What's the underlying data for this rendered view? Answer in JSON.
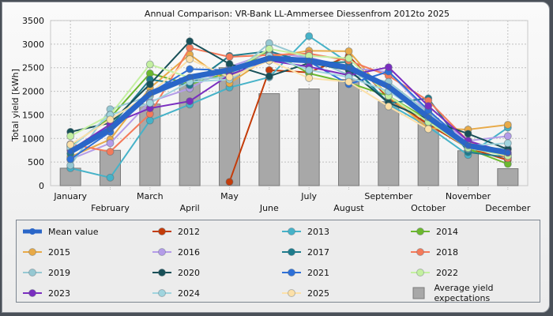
{
  "chart_data": {
    "type": "line",
    "title": "Annual Comparison: VR-Bank LL-Ammersee Diessenfrom 2012to 2025",
    "xlabel": "",
    "ylabel": "Total yield [kWh]",
    "ylim": [
      0,
      3500
    ],
    "yticks": [
      0,
      500,
      1000,
      1500,
      2000,
      2500,
      3000,
      3500
    ],
    "grid": true,
    "legend_position": "bottom",
    "categories": [
      "January",
      "February",
      "March",
      "April",
      "May",
      "June",
      "July",
      "August",
      "September",
      "October",
      "November",
      "December"
    ],
    "bars": {
      "name": "Average yield expectations",
      "color": "#a8a8a8",
      "values": [
        370,
        750,
        1730,
        2280,
        2500,
        1950,
        2050,
        2250,
        1780,
        1430,
        740,
        360
      ]
    },
    "series": [
      {
        "name": "Mean value",
        "color": "#2a66c8",
        "thick": true,
        "values": [
          720,
          1200,
          1950,
          2300,
          2450,
          2700,
          2650,
          2500,
          2100,
          1450,
          850,
          700
        ]
      },
      {
        "name": "2012",
        "color": "#c43c0a",
        "values": [
          null,
          null,
          null,
          null,
          80,
          2450,
          2400,
          2750,
          1850,
          1300,
          800,
          540
        ]
      },
      {
        "name": "2013",
        "color": "#46b2c8",
        "values": [
          370,
          170,
          1380,
          1720,
          2080,
          2300,
          3170,
          2600,
          1730,
          1250,
          650,
          1230
        ]
      },
      {
        "name": "2014",
        "color": "#6cb82e",
        "values": [
          840,
          1440,
          2380,
          2150,
          2400,
          2850,
          2380,
          2180,
          1900,
          1400,
          780,
          460
        ]
      },
      {
        "name": "2015",
        "color": "#e8aa48",
        "values": [
          610,
          980,
          2070,
          2780,
          2170,
          2730,
          2860,
          2850,
          1890,
          1220,
          1190,
          1290
        ]
      },
      {
        "name": "2016",
        "color": "#b49ce8",
        "values": [
          560,
          900,
          1780,
          2060,
          2520,
          2810,
          2720,
          2500,
          2410,
          1550,
          950,
          1050
        ]
      },
      {
        "name": "2017",
        "color": "#1e7c8c",
        "values": [
          680,
          1250,
          2250,
          2130,
          2750,
          2850,
          2600,
          2620,
          1750,
          1850,
          710,
          600
        ]
      },
      {
        "name": "2018",
        "color": "#f47a5a",
        "values": [
          880,
          720,
          1520,
          2920,
          2730,
          2770,
          2800,
          2650,
          2330,
          1800,
          950,
          580
        ]
      },
      {
        "name": "2019",
        "color": "#96c8d2",
        "values": [
          430,
          1620,
          1900,
          2250,
          2300,
          3020,
          2700,
          2350,
          2200,
          1550,
          780,
          790
        ]
      },
      {
        "name": "2020",
        "color": "#185058",
        "values": [
          1140,
          1330,
          2150,
          3060,
          2580,
          2320,
          2600,
          2450,
          1760,
          1400,
          1100,
          770
        ]
      },
      {
        "name": "2021",
        "color": "#2e70d8",
        "values": [
          560,
          1140,
          1960,
          2470,
          2450,
          2700,
          2630,
          2150,
          2420,
          1600,
          850,
          660
        ]
      },
      {
        "name": "2022",
        "color": "#c4f0a0",
        "values": [
          1050,
          1500,
          2570,
          2290,
          2400,
          2900,
          2750,
          2700,
          1900,
          1350,
          800,
          630
        ]
      },
      {
        "name": "2023",
        "color": "#7a2ec0",
        "values": [
          750,
          1300,
          1640,
          1790,
          2350,
          2650,
          2520,
          2340,
          2510,
          1690,
          950,
          700
        ]
      },
      {
        "name": "2024",
        "color": "#a0d4de",
        "values": [
          800,
          1500,
          1750,
          2200,
          2250,
          2750,
          2450,
          2300,
          2000,
          1450,
          850,
          900
        ]
      },
      {
        "name": "2025",
        "color": "#fce0a8",
        "values": [
          870,
          1400,
          1950,
          2680,
          2300,
          2650,
          2280,
          2200,
          1680,
          1200,
          null,
          null
        ]
      }
    ]
  }
}
